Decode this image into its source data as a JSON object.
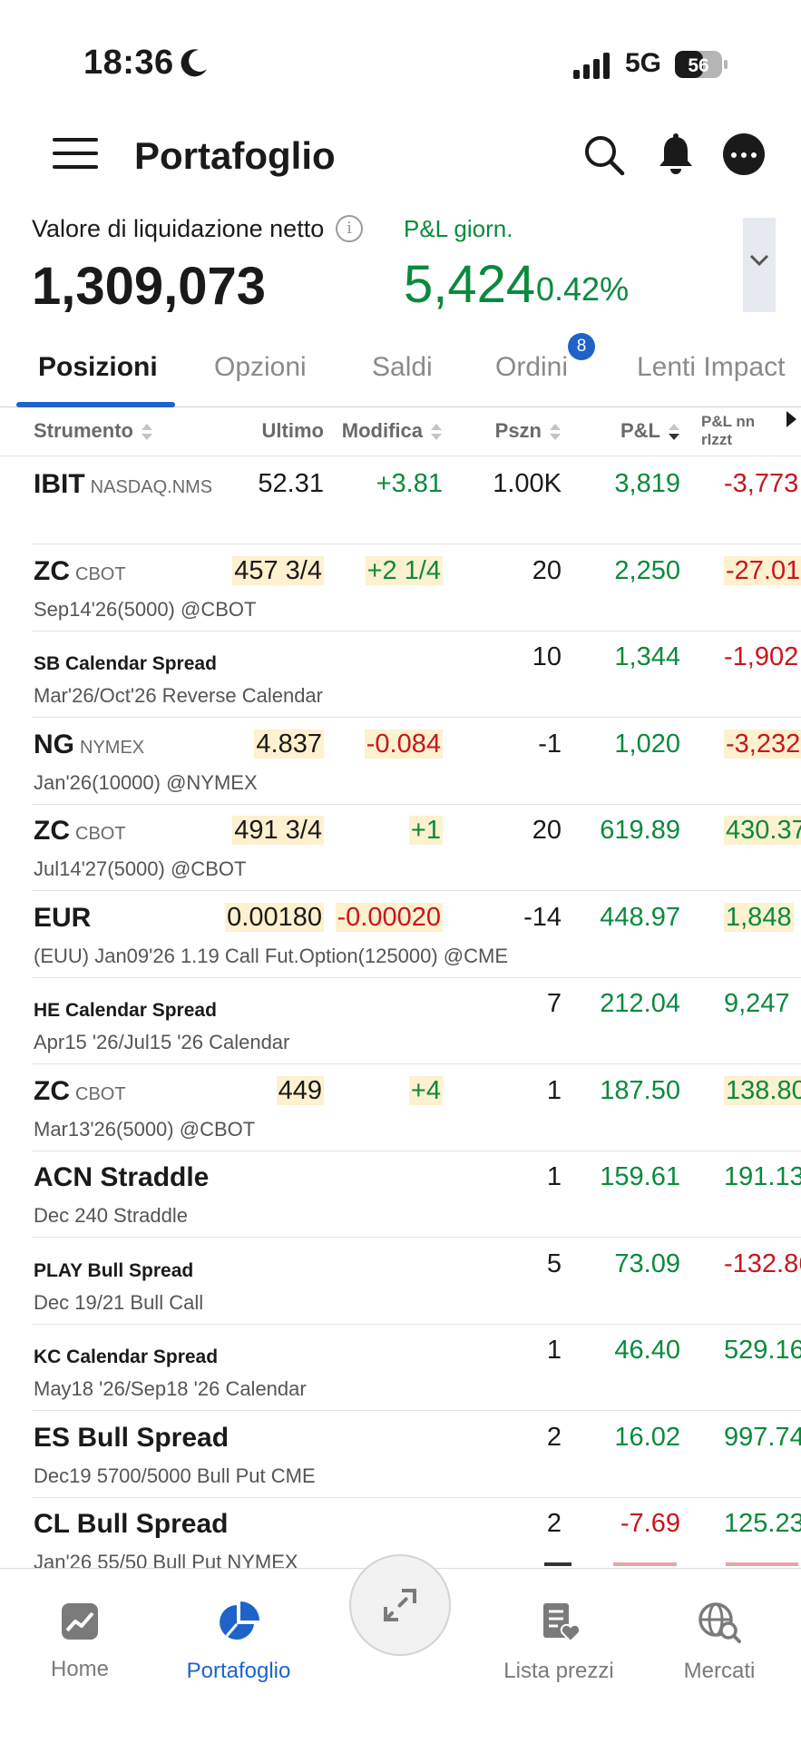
{
  "status_bar": {
    "time": "18:36",
    "network": "5G",
    "battery": "56"
  },
  "header": {
    "title": "Portafoglio",
    "icons": [
      "menu-icon",
      "search-icon",
      "bell-icon",
      "more-icon"
    ]
  },
  "summary": {
    "nlv_label": "Valore di liquidazione netto",
    "nlv_value": "1,309,073",
    "pnl_label": "P&L giorn.",
    "pnl_value": "5,424",
    "pnl_percent": "0.42%"
  },
  "tabs": [
    {
      "label": "Posizioni",
      "active": true
    },
    {
      "label": "Opzioni"
    },
    {
      "label": "Saldi"
    },
    {
      "label": "Ordini",
      "badge": "8"
    },
    {
      "label": "Lenti Impact"
    }
  ],
  "columns": {
    "instrument": "Strumento",
    "last": "Ultimo",
    "change": "Modifica",
    "position": "Pszn",
    "pnl": "P&L",
    "unrealized_line1": "P&L nn",
    "unrealized_line2": "rlzzt"
  },
  "rows": [
    {
      "symbol": "IBIT",
      "exchange": "NASDAQ.NMS",
      "desc": "",
      "last": "52.31",
      "change": "+3.81",
      "position": "1.00K",
      "pnl": "3,819",
      "unrealized": "-3,773"
    },
    {
      "symbol": "ZC",
      "exchange": "CBOT",
      "desc": "Sep14'26(5000) @CBOT",
      "last": "457 3/4",
      "change": "+2 1/4",
      "position": "20",
      "pnl": "2,250",
      "unrealized": "-27.01"
    },
    {
      "symbol": "SB Calendar Spread",
      "exchange": "",
      "desc": "Mar'26/Oct'26 Reverse Calendar",
      "last": "",
      "change": "",
      "position": "10",
      "pnl": "1,344",
      "unrealized": "-1,902"
    },
    {
      "symbol": "NG",
      "exchange": "NYMEX",
      "desc": "Jan'26(10000) @NYMEX",
      "last": "4.837",
      "change": "-0.084",
      "position": "-1",
      "pnl": "1,020",
      "unrealized": "-3,232"
    },
    {
      "symbol": "ZC",
      "exchange": "CBOT",
      "desc": "Jul14'27(5000) @CBOT",
      "last": "491 3/4",
      "change": "+1",
      "position": "20",
      "pnl": "619.89",
      "unrealized": "430.37"
    },
    {
      "symbol": "EUR",
      "exchange": "",
      "desc": "(EUU) Jan09'26 1.19 Call Fut.Option(125000) @CME",
      "last": "0.00180",
      "change": "-0.00020",
      "position": "-14",
      "pnl": "448.97",
      "unrealized": "1,848"
    },
    {
      "symbol": "HE Calendar Spread",
      "exchange": "",
      "desc": "Apr15 '26/Jul15 '26 Calendar",
      "last": "",
      "change": "",
      "position": "7",
      "pnl": "212.04",
      "unrealized": "9,247"
    },
    {
      "symbol": "ZC",
      "exchange": "CBOT",
      "desc": "Mar13'26(5000) @CBOT",
      "last": "449",
      "change": "+4",
      "position": "1",
      "pnl": "187.50",
      "unrealized": "138.80"
    },
    {
      "symbol": "ACN Straddle",
      "exchange": "",
      "desc": "Dec 240 Straddle",
      "last": "",
      "change": "",
      "position": "1",
      "pnl": "159.61",
      "unrealized": "191.13"
    },
    {
      "symbol": "PLAY Bull Spread",
      "exchange": "",
      "desc": "Dec 19/21 Bull Call",
      "last": "",
      "change": "",
      "position": "5",
      "pnl": "73.09",
      "unrealized": "-132.86"
    },
    {
      "symbol": "KC Calendar Spread",
      "exchange": "",
      "desc": "May18 '26/Sep18 '26 Calendar",
      "last": "",
      "change": "",
      "position": "1",
      "pnl": "46.40",
      "unrealized": "529.16"
    },
    {
      "symbol": "ES Bull Spread",
      "exchange": "",
      "desc": "Dec19 5700/5000 Bull Put CME",
      "last": "",
      "change": "",
      "position": "2",
      "pnl": "16.02",
      "unrealized": "997.74"
    },
    {
      "symbol": "CL Bull Spread",
      "exchange": "",
      "desc": "Jan'26 55/50 Bull Put NYMEX",
      "last": "",
      "change": "",
      "position": "2",
      "pnl": "-7.69",
      "unrealized": "125.23"
    }
  ],
  "bottom_nav": [
    {
      "label": "Home",
      "icon": "chart-icon"
    },
    {
      "label": "Portafoglio",
      "icon": "pie-chart-icon",
      "active": true
    },
    {
      "label": "",
      "icon": "expand-arrows-icon"
    },
    {
      "label": "Lista prezzi",
      "icon": "watchlist-icon"
    },
    {
      "label": "Mercati",
      "icon": "globe-search-icon"
    }
  ],
  "colors": {
    "accent": "#1f63c9",
    "positive": "#0a8a3c",
    "negative": "#c8161d",
    "highlight": "#fdf1cf"
  }
}
